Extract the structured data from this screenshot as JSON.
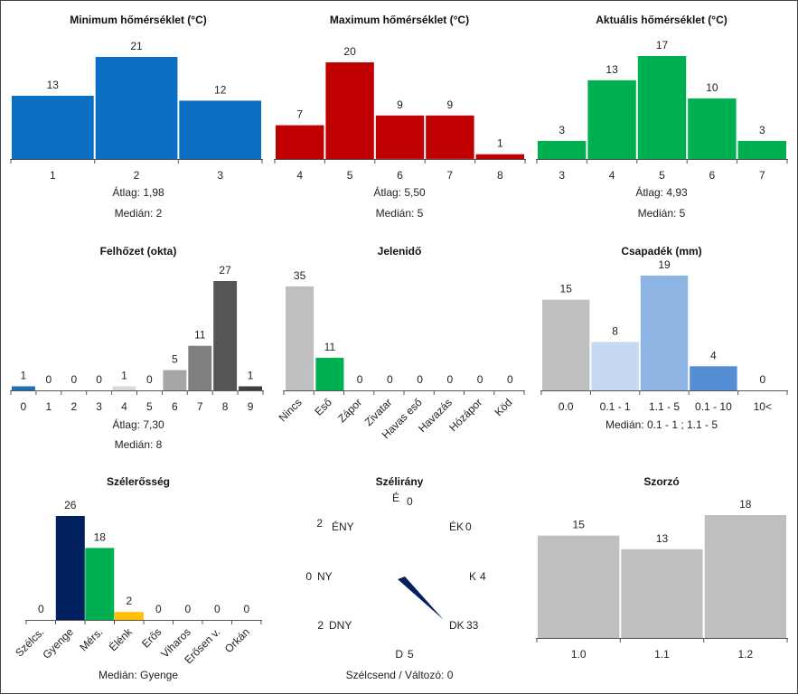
{
  "chart_data": [
    {
      "id": "min",
      "type": "bar",
      "title": "Minimum hőmérséklet (°C)",
      "categories": [
        "1",
        "2",
        "3"
      ],
      "values": [
        13,
        21,
        12
      ],
      "colors": [
        "#0a6fc2",
        "#0a6fc2",
        "#0a6fc2"
      ],
      "stats": [
        {
          "label": "Átlag:",
          "value": "1,98"
        },
        {
          "label": "Medián:",
          "value": "2"
        }
      ]
    },
    {
      "id": "max",
      "type": "bar",
      "title": "Maximum hőmérséklet (°C)",
      "categories": [
        "4",
        "5",
        "6",
        "7",
        "8"
      ],
      "values": [
        7,
        20,
        9,
        9,
        1
      ],
      "colors": [
        "#c00000",
        "#c00000",
        "#c00000",
        "#c00000",
        "#c00000"
      ],
      "stats": [
        {
          "label": "Átlag:",
          "value": "5,50"
        },
        {
          "label": "Medián:",
          "value": "5"
        }
      ]
    },
    {
      "id": "akt",
      "type": "bar",
      "title": "Aktuális hőmérséklet (°C)",
      "categories": [
        "3",
        "4",
        "5",
        "6",
        "7"
      ],
      "values": [
        3,
        13,
        17,
        10,
        3
      ],
      "colors": [
        "#00b050",
        "#00b050",
        "#00b050",
        "#00b050",
        "#00b050"
      ],
      "stats": [
        {
          "label": "Átlag:",
          "value": "4,93"
        },
        {
          "label": "Medián:",
          "value": "5"
        }
      ]
    },
    {
      "id": "felho",
      "type": "bar",
      "title": "Felhőzet (okta)",
      "categories": [
        "0",
        "1",
        "2",
        "3",
        "4",
        "5",
        "6",
        "7",
        "8",
        "9"
      ],
      "values": [
        1,
        0,
        0,
        0,
        1,
        0,
        5,
        11,
        27,
        1
      ],
      "colors": [
        "#1f6fb8",
        "#dddddd",
        "#dddddd",
        "#dddddd",
        "#d9d9d9",
        "#c8c8c8",
        "#a6a6a6",
        "#808080",
        "#555555",
        "#3f3f3f"
      ],
      "stats": [
        {
          "label": "Átlag:",
          "value": "7,30"
        },
        {
          "label": "Medián:",
          "value": "8"
        }
      ]
    },
    {
      "id": "jelen",
      "type": "bar",
      "title": "Jelenidő",
      "categories": [
        "Nincs",
        "Eső",
        "Zápor",
        "Zivatar",
        "Havas eső",
        "Havazás",
        "Hózápor",
        "Köd"
      ],
      "values": [
        35,
        11,
        0,
        0,
        0,
        0,
        0,
        0
      ],
      "colors": [
        "#bfbfbf",
        "#00b050",
        "#bfbfbf",
        "#bfbfbf",
        "#bfbfbf",
        "#bfbfbf",
        "#bfbfbf",
        "#bfbfbf"
      ],
      "stats": []
    },
    {
      "id": "csap",
      "type": "bar",
      "title": "Csapadék (mm)",
      "categories": [
        "0.0",
        "0.1 - 1",
        "1.1 - 5",
        "0.1 - 10",
        "10<"
      ],
      "values": [
        15,
        8,
        19,
        4,
        0
      ],
      "colors": [
        "#bfbfbf",
        "#c5d9f1",
        "#8db4e2",
        "#558ed5",
        "#1f4e9a"
      ],
      "stats": [
        {
          "label": "Medián:",
          "value": "0.1 - 1 ; 1.1 - 5"
        }
      ]
    },
    {
      "id": "szel",
      "type": "bar",
      "title": "Szélerősség",
      "categories": [
        "Szélcs.",
        "Gyenge",
        "Mérs.",
        "Élénk",
        "Erős",
        "Viharos",
        "Erősen v.",
        "Orkán"
      ],
      "values": [
        0,
        26,
        18,
        2,
        0,
        0,
        0,
        0
      ],
      "colors": [
        "#bfbfbf",
        "#002060",
        "#00b050",
        "#ffc000",
        "#bfbfbf",
        "#bfbfbf",
        "#bfbfbf",
        "#bfbfbf"
      ],
      "stats": [
        {
          "label": "Medián:",
          "value": "Gyenge"
        }
      ]
    },
    {
      "id": "szorzo",
      "type": "bar",
      "title": "Szorzó",
      "categories": [
        "1.0",
        "1.1",
        "1.2"
      ],
      "values": [
        15,
        13,
        18
      ],
      "colors": [
        "#bfbfbf",
        "#bfbfbf",
        "#bfbfbf"
      ],
      "stats": []
    }
  ],
  "wind_direction": {
    "title": "Szélirány",
    "directions": [
      {
        "name": "É",
        "count": "0"
      },
      {
        "name": "ÉK",
        "count": "0"
      },
      {
        "name": "K",
        "count": "4"
      },
      {
        "name": "DK",
        "count": "33"
      },
      {
        "name": "D",
        "count": "5"
      },
      {
        "name": "DNY",
        "count": "2"
      },
      {
        "name": "NY",
        "count": "0"
      },
      {
        "name": "ÉNY",
        "count": "2"
      }
    ],
    "arrow_direction": "DK",
    "footer_label": "Szélcsend / Változó:",
    "footer_value": "0",
    "arrow_color": "#002060"
  }
}
